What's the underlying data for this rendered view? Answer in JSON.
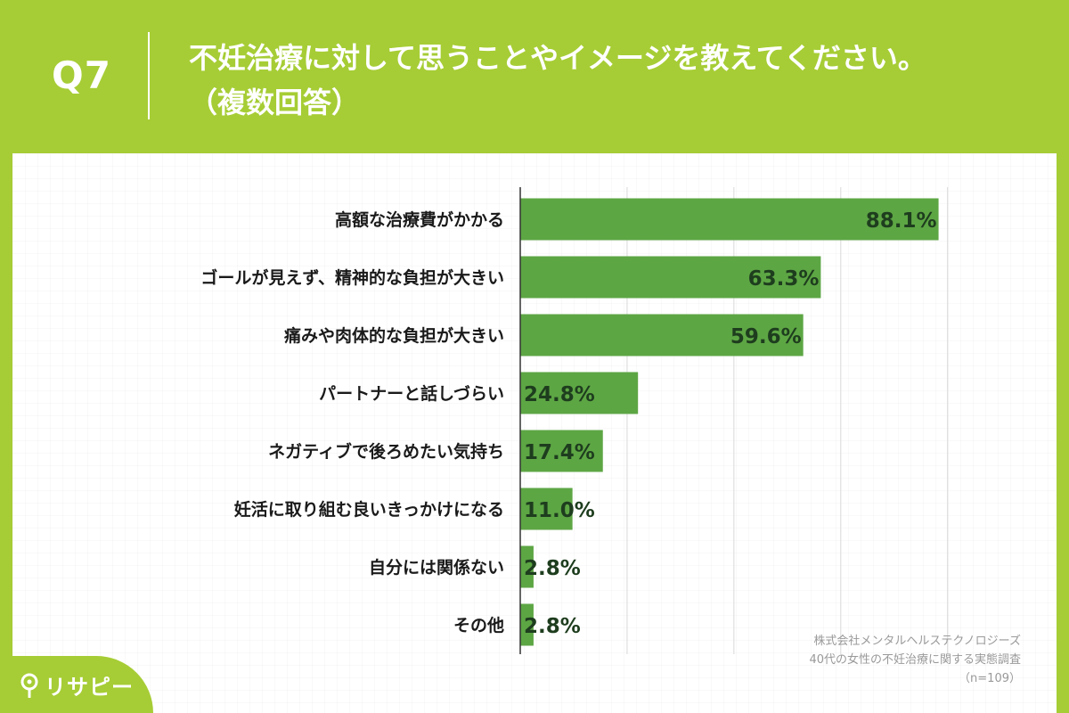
{
  "header": {
    "question_label": "Q7",
    "title": "不妊治療に対して思うことやイメージを教えてください。",
    "subtitle": "（複数回答）"
  },
  "colors": {
    "background": "#a6cd35",
    "bar": "#5da644",
    "grid": "#d9d9d9",
    "value_text": "#1e3d1e"
  },
  "chart_data": {
    "type": "bar",
    "orientation": "horizontal",
    "categories": [
      "高額な治療費がかかる",
      "ゴールが見えず、精神的な負担が大きい",
      "痛みや肉体的な負担が大きい",
      "パートナーと話しづらい",
      "ネガティブで後ろめたい気持ち",
      "妊活に取り組む良いきっかけになる",
      "自分には関係ない",
      "その他"
    ],
    "values": [
      88.1,
      63.3,
      59.6,
      24.8,
      17.4,
      11.0,
      2.8,
      2.8
    ],
    "value_labels": [
      "88.1%",
      "63.3%",
      "59.6%",
      "24.8%",
      "17.4%",
      "11.0%",
      "2.8%",
      "2.8%"
    ],
    "xlim": [
      0,
      100
    ],
    "x_grid_step": 22.5,
    "grid": true
  },
  "source": {
    "company": "株式会社メンタルヘルステクノロジーズ",
    "survey": "40代の女性の不妊治療に関する実態調査",
    "n": "（n=109）"
  },
  "logo": {
    "text": "リサピー",
    "icon": "location-pin-icon"
  }
}
